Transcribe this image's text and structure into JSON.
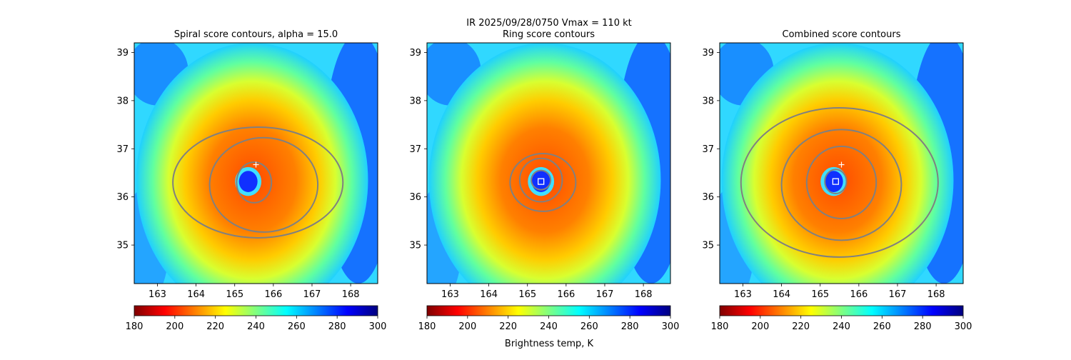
{
  "figure": {
    "suptitle_line1": "IR  2025/09/28/0750    Vmax = 110 kt",
    "colorbar_label": "Brightness temp, K"
  },
  "colormap": {
    "name": "jet_r",
    "stops": [
      "#7f0000",
      "#ff0000",
      "#ff8000",
      "#ffff00",
      "#80ff80",
      "#00ffff",
      "#0080ff",
      "#0000ff",
      "#00007f"
    ]
  },
  "marker_colors": {
    "contour": "#808080",
    "best_track": "#ffffff",
    "fix": "#ffffff"
  },
  "chart_data": [
    {
      "type": "heatmap",
      "title": "Spiral score contours, alpha = 15.0",
      "xlim": [
        162.4,
        168.7
      ],
      "ylim": [
        34.2,
        39.2
      ],
      "xticks": [
        "163",
        "164",
        "165",
        "166",
        "167",
        "168"
      ],
      "yticks": [
        "35",
        "36",
        "37",
        "38",
        "39"
      ],
      "eye": {
        "lon": 165.35,
        "lat": 36.32
      },
      "best_track_marker": {
        "lon": 165.55,
        "lat": 36.67
      },
      "fix_marker": null,
      "contours": [
        {
          "name": "spiral-inner",
          "lon": 165.5,
          "lat": 36.3,
          "rx": 0.45,
          "ry": 0.42
        },
        {
          "name": "spiral-mid",
          "lon": 165.75,
          "lat": 36.25,
          "rx": 1.4,
          "ry": 0.98
        },
        {
          "name": "spiral-outer",
          "lon": 165.6,
          "lat": 36.3,
          "rx": 2.2,
          "ry": 1.15
        }
      ],
      "colorbar": {
        "range": [
          180,
          300
        ],
        "ticks": [
          "180",
          "200",
          "220",
          "240",
          "260",
          "280",
          "300"
        ]
      }
    },
    {
      "type": "heatmap",
      "title": "Ring score contours",
      "xlim": [
        162.4,
        168.7
      ],
      "ylim": [
        34.2,
        39.2
      ],
      "xticks": [
        "163",
        "164",
        "165",
        "166",
        "167",
        "168"
      ],
      "yticks": [
        "35",
        "36",
        "37",
        "38",
        "39"
      ],
      "eye": {
        "lon": 165.35,
        "lat": 36.32
      },
      "best_track_marker": null,
      "fix_marker": {
        "lon": 165.35,
        "lat": 36.32
      },
      "contours": [
        {
          "name": "ring-inner",
          "lon": 165.35,
          "lat": 36.35,
          "rx": 0.25,
          "ry": 0.2
        },
        {
          "name": "ring-mid",
          "lon": 165.35,
          "lat": 36.35,
          "rx": 0.55,
          "ry": 0.45
        },
        {
          "name": "ring-outer",
          "lon": 165.4,
          "lat": 36.3,
          "rx": 0.85,
          "ry": 0.6
        }
      ],
      "colorbar": {
        "range": [
          180,
          300
        ],
        "ticks": [
          "180",
          "200",
          "220",
          "240",
          "260",
          "280",
          "300"
        ]
      }
    },
    {
      "type": "heatmap",
      "title": "Combined score contours",
      "xlim": [
        162.4,
        168.7
      ],
      "ylim": [
        34.2,
        39.2
      ],
      "xticks": [
        "163",
        "164",
        "165",
        "166",
        "167",
        "168"
      ],
      "yticks": [
        "35",
        "36",
        "37",
        "38",
        "39"
      ],
      "eye": {
        "lon": 165.35,
        "lat": 36.32
      },
      "best_track_marker": {
        "lon": 165.55,
        "lat": 36.67
      },
      "fix_marker": {
        "lon": 165.4,
        "lat": 36.32
      },
      "contours": [
        {
          "name": "combined-inner",
          "lon": 165.4,
          "lat": 36.32,
          "rx": 0.28,
          "ry": 0.25
        },
        {
          "name": "combined-mid",
          "lon": 165.55,
          "lat": 36.3,
          "rx": 0.9,
          "ry": 0.75
        },
        {
          "name": "combined-mid2",
          "lon": 165.55,
          "lat": 36.25,
          "rx": 1.55,
          "ry": 1.15
        },
        {
          "name": "combined-outer",
          "lon": 165.5,
          "lat": 36.3,
          "rx": 2.55,
          "ry": 1.55
        }
      ],
      "colorbar": {
        "range": [
          180,
          300
        ],
        "ticks": [
          "180",
          "200",
          "220",
          "240",
          "260",
          "280",
          "300"
        ]
      }
    }
  ]
}
